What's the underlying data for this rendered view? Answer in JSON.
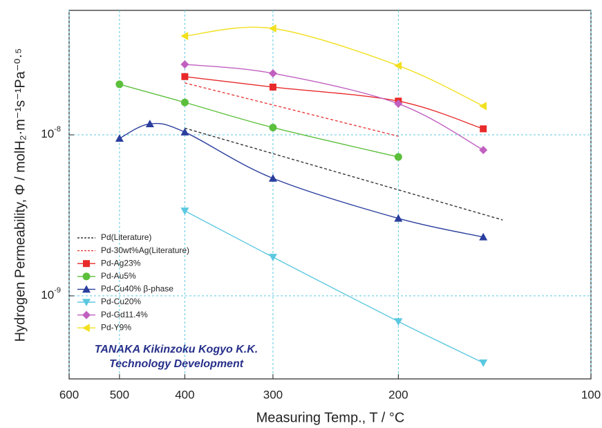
{
  "chart_data": {
    "type": "line",
    "xlabel": "Measuring Temp., T / °C",
    "ylabel": "Hydrogen Permeability, Φ / molH₂·m⁻¹s⁻¹Pa⁻⁰·⁵",
    "xscale": "inverse-kelvin",
    "yscale": "log",
    "xlim": [
      600,
      100
    ],
    "xticks": [
      600,
      500,
      400,
      300,
      200,
      100
    ],
    "ylim": [
      3.05e-10,
      5.93e-08
    ],
    "yticks": [
      {
        "value": 1e-09,
        "label": "10-9"
      },
      {
        "value": 1e-08,
        "label": "10-8"
      }
    ],
    "grid": true,
    "legend": "lower left",
    "annotations": [
      "TANAKA Kikinzoku Kogyo K.K.",
      "Technology Development"
    ],
    "series": [
      {
        "name": "Pd(Literature)",
        "color": "#333333",
        "dash": true,
        "marker": "none",
        "x": [
          400,
          140
        ],
        "values": [
          1.1e-08,
          2.96e-09
        ]
      },
      {
        "name": "Pd-30wt%Ag(Literature)",
        "color": "#e83a3a",
        "dash": true,
        "marker": "none",
        "x": [
          400,
          200
        ],
        "values": [
          2.1e-08,
          9.8e-09
        ]
      },
      {
        "name": "Pd-Ag23%",
        "color": "#e82a2a",
        "dash": false,
        "marker": "square",
        "x": [
          400,
          300,
          200,
          150
        ],
        "values": [
          2.3e-08,
          1.98e-08,
          1.62e-08,
          1.09e-08
        ]
      },
      {
        "name": "Pd-Au5%",
        "color": "#5cbf3c",
        "dash": false,
        "marker": "circle",
        "x": [
          500,
          400,
          300,
          200
        ],
        "values": [
          2.06e-08,
          1.59e-08,
          1.11e-08,
          7.29e-09
        ]
      },
      {
        "name": "Pd-Cu40% β-phase",
        "color": "#2a3e9e",
        "dash": false,
        "marker": "triangle-up",
        "x": [
          500,
          450,
          400,
          300,
          200,
          150
        ],
        "values": [
          9.5e-09,
          1.17e-08,
          1.04e-08,
          5.37e-09,
          3.03e-09,
          2.32e-09
        ]
      },
      {
        "name": "Pd-Cu20%",
        "color": "#5bc8e0",
        "dash": false,
        "marker": "triangle-down",
        "x": [
          400,
          300,
          200,
          150
        ],
        "values": [
          3.37e-09,
          1.74e-09,
          6.93e-10,
          3.84e-10
        ]
      },
      {
        "name": "Pd-Gd11.4%",
        "color": "#c060c0",
        "dash": false,
        "marker": "diamond",
        "x": [
          400,
          300,
          200,
          150
        ],
        "values": [
          2.74e-08,
          2.41e-08,
          1.56e-08,
          8.05e-09
        ]
      },
      {
        "name": "Pd-Y9%",
        "color": "#f2e020",
        "dash": false,
        "marker": "triangle-left",
        "x": [
          400,
          300,
          200,
          150
        ],
        "values": [
          4.11e-08,
          4.58e-08,
          2.69e-08,
          1.51e-08
        ]
      }
    ]
  }
}
